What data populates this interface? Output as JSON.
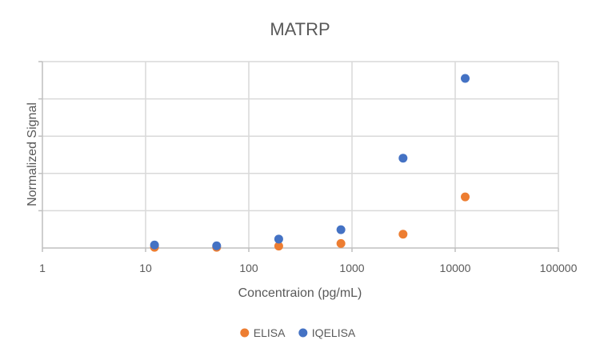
{
  "chart_data": {
    "type": "scatter",
    "title": "MATRP",
    "xlabel": "Concentraion (pg/mL)",
    "ylabel": "Normalized Signal",
    "xscale": "log",
    "xlim": [
      1,
      100000
    ],
    "x_ticks": [
      "1",
      "10",
      "100",
      "1000",
      "10000",
      "100000"
    ],
    "ylim": [
      0,
      5
    ],
    "y_tick_count": 5,
    "y_tick_labels_shown": false,
    "grid": true,
    "legend_position": "bottom",
    "series": [
      {
        "name": "ELISA",
        "color": "#ED7D31",
        "x": [
          12.2,
          48.8,
          195,
          781,
          3125,
          12500
        ],
        "y": [
          0.02,
          0.02,
          0.05,
          0.12,
          0.37,
          1.37
        ]
      },
      {
        "name": "IQELISA",
        "color": "#4472C4",
        "x": [
          12.2,
          48.8,
          195,
          781,
          3125,
          12500
        ],
        "y": [
          0.08,
          0.06,
          0.24,
          0.49,
          2.41,
          4.55
        ]
      }
    ]
  }
}
